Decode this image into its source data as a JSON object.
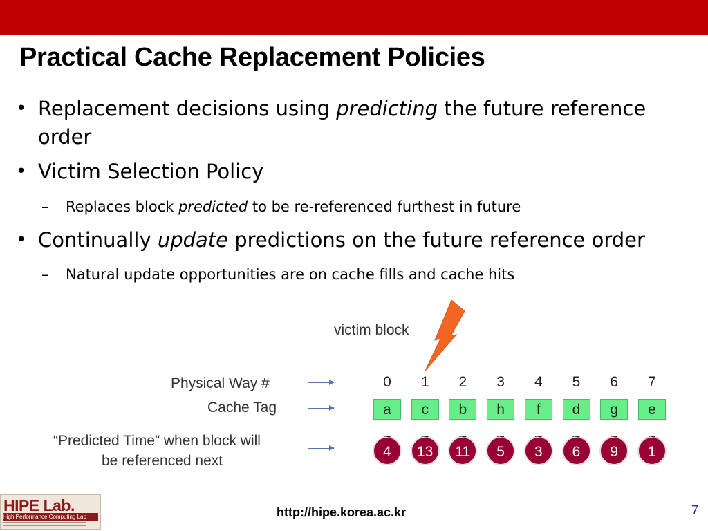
{
  "slide": {
    "title": "Practical Cache Replacement Policies",
    "bullets": [
      {
        "pre": "Replacement decisions using ",
        "em": "predicting",
        "post": " the future reference",
        "line2": "order"
      },
      {
        "text": "Victim Selection Policy"
      },
      {
        "pre": "Replaces block ",
        "em": "predicted",
        "post": " to be re-referenced furthest in future"
      },
      {
        "pre": "Continually ",
        "em": "update",
        "post": " predictions on the future reference order"
      },
      {
        "text": "Natural update opportunities are on cache fills and cache hits"
      }
    ],
    "bullet_glyph": "•",
    "dash_glyph": "–"
  },
  "diagram": {
    "victim_label": "victim block",
    "row_labels": {
      "way": "Physical Way #",
      "tag": "Cache Tag",
      "predicted_line1": "“Predicted Time” when block will",
      "predicted_line2": "be referenced next"
    },
    "tilde": "~",
    "ways": [
      "0",
      "1",
      "2",
      "3",
      "4",
      "5",
      "6",
      "7"
    ],
    "tags": [
      "a",
      "c",
      "b",
      "h",
      "f",
      "d",
      "g",
      "e"
    ],
    "predicted": [
      "4",
      "13",
      "11",
      "5",
      "3",
      "6",
      "9",
      "1"
    ],
    "victim_way": 1,
    "colors": {
      "tag_fill": "#66ee88",
      "pred_fill": "#990033",
      "bolt": "#f26522",
      "accent": "#c00000"
    }
  },
  "footer": {
    "url": "http://hipe.korea.ac.kr",
    "page": "7",
    "logo_name": "HIPE Lab.",
    "logo_sub": "High Performance Computing Lab"
  }
}
